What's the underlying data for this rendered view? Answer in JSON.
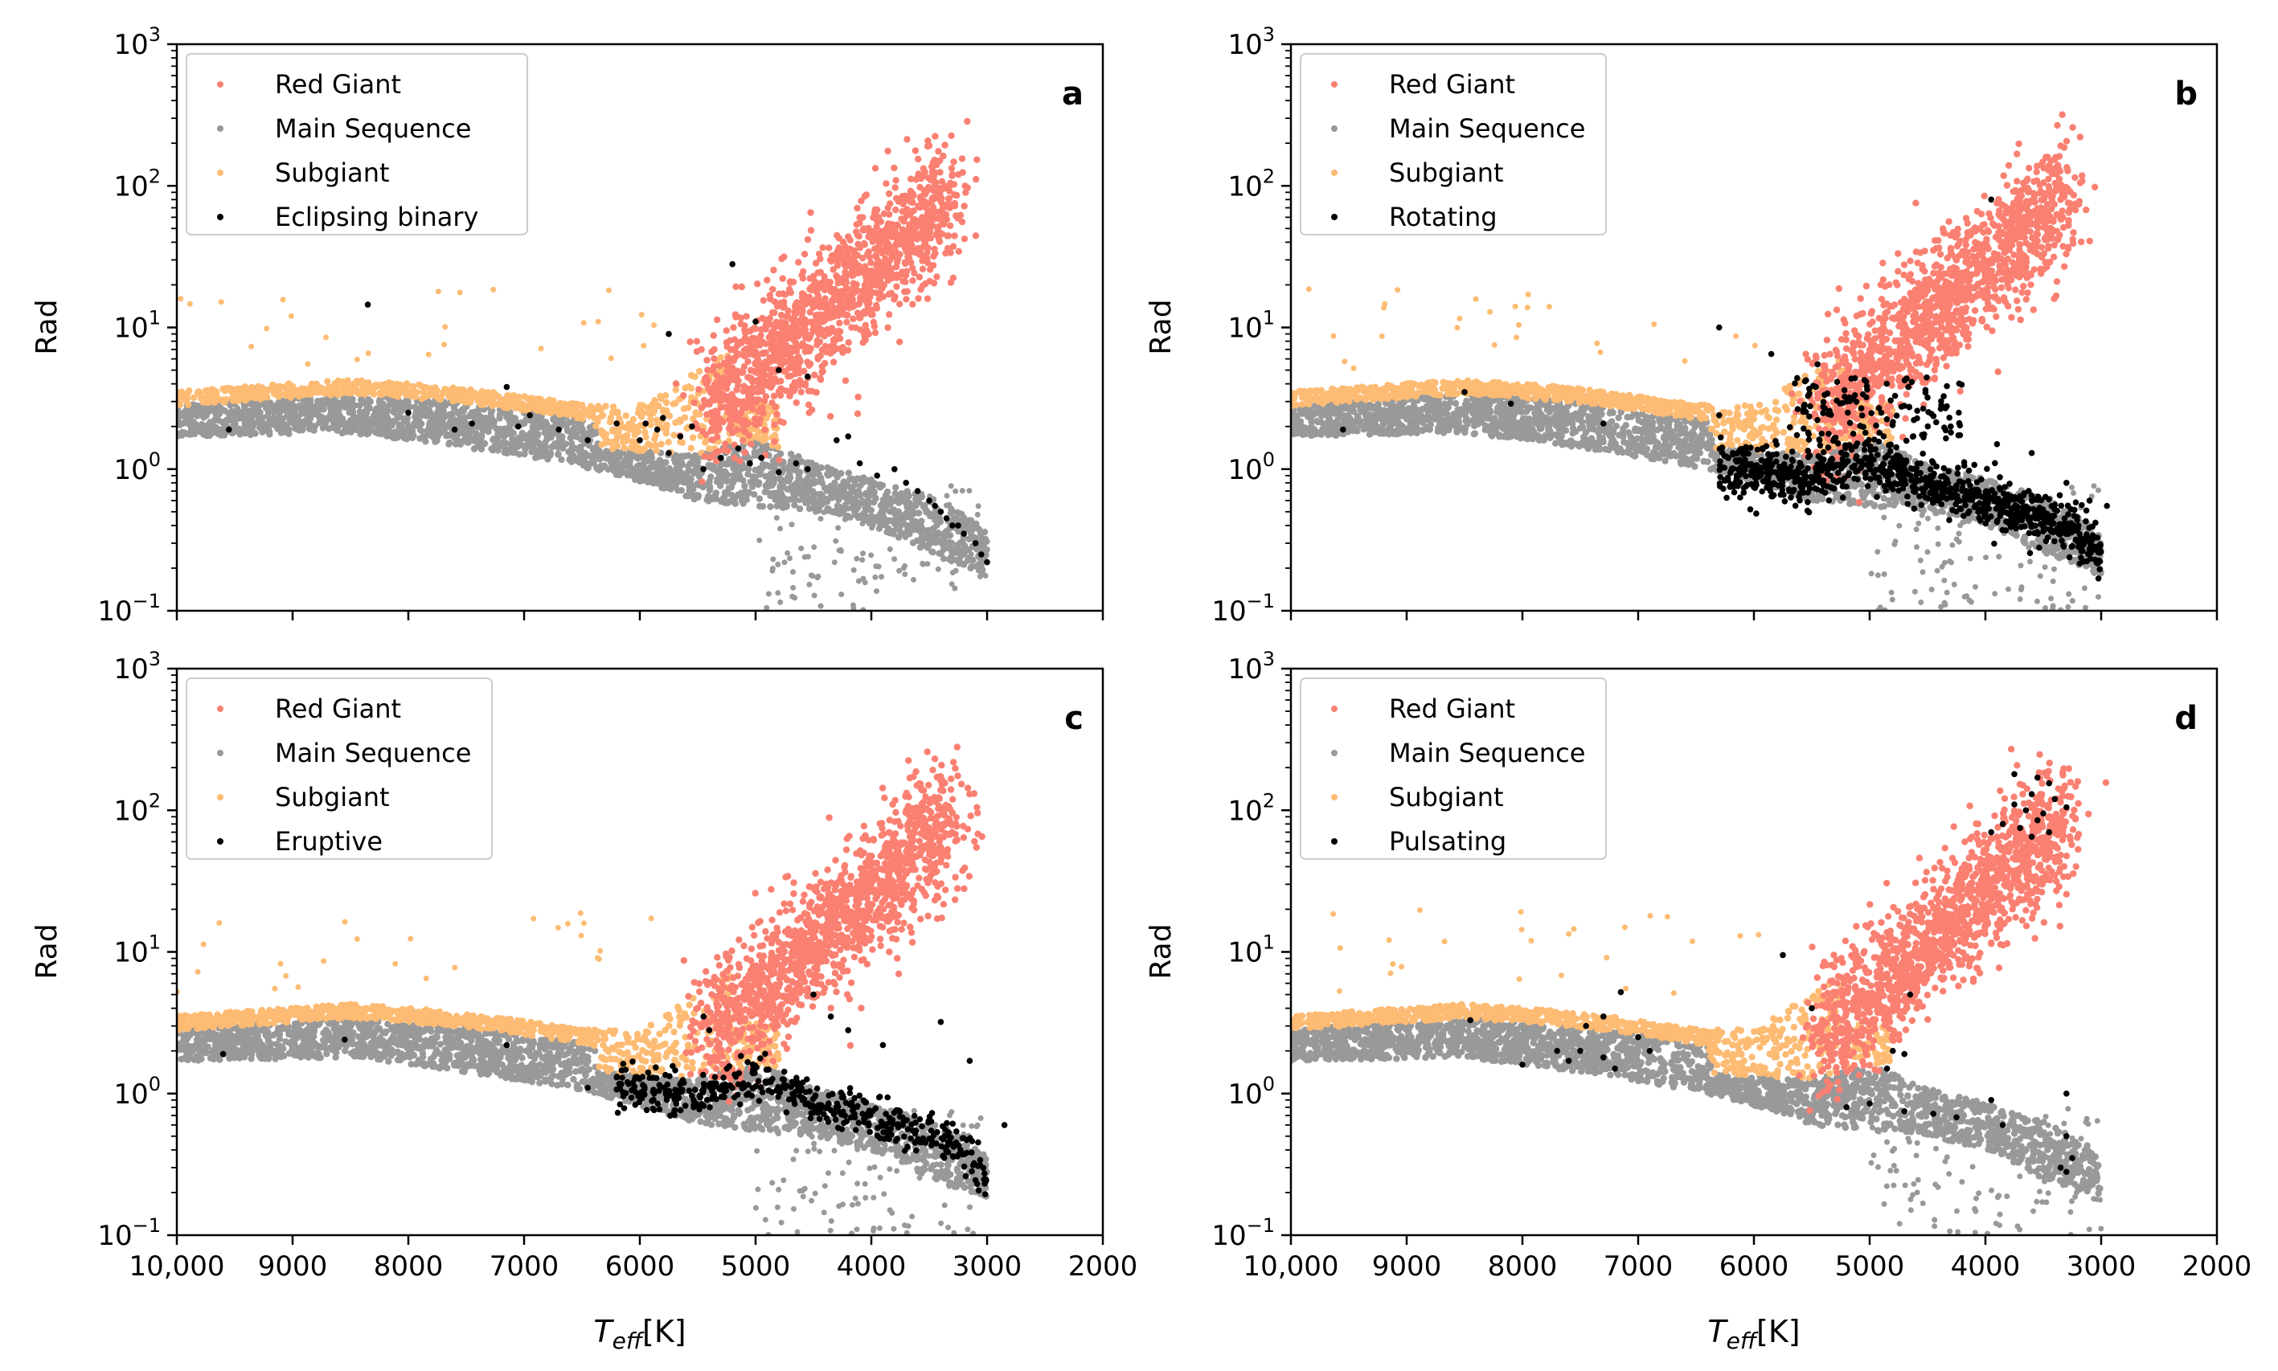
{
  "figure": {
    "x_axis_label": "T",
    "x_axis_label_sub": "eff",
    "x_axis_label_unit": "[K]",
    "y_axis_label": "Rad"
  },
  "colors": {
    "red_giant": "#FA8072",
    "main_sequence": "#999999",
    "subgiant": "#FDBB73",
    "variable": "#000000"
  },
  "chart_data": [
    {
      "panel": "a",
      "type": "scatter",
      "title": "",
      "panel_label": "a",
      "xlabel": "T_eff [K]",
      "ylabel": "Rad",
      "xlim": [
        10000,
        2000
      ],
      "ylim": [
        0.1,
        1000
      ],
      "yscale": "log",
      "x_ticks": [
        "10,000",
        "9000",
        "8000",
        "7000",
        "6000",
        "5000",
        "4000",
        "3000",
        "2000"
      ],
      "y_ticks": [
        {
          "base": "10",
          "exp": "−1"
        },
        {
          "base": "10",
          "exp": "0"
        },
        {
          "base": "10",
          "exp": "1"
        },
        {
          "base": "10",
          "exp": "2"
        },
        {
          "base": "10",
          "exp": "3"
        }
      ],
      "legend_position": "top-left",
      "legend": [
        "Red Giant",
        "Main Sequence",
        "Subgiant",
        "Eclipsing binary"
      ],
      "highlight": "Eclipsing binary",
      "series": [
        {
          "name": "Eclipsing binary",
          "points": [
            [
              8350,
              14.5
            ],
            [
              5750,
              9
            ],
            [
              5200,
              28
            ],
            [
              5000,
              11
            ],
            [
              4800,
              5
            ],
            [
              4550,
              4.5
            ],
            [
              7150,
              3.8
            ],
            [
              9550,
              1.9
            ],
            [
              8000,
              2.5
            ],
            [
              7600,
              1.9
            ],
            [
              7450,
              2.1
            ],
            [
              7050,
              2.0
            ],
            [
              6950,
              2.4
            ],
            [
              6700,
              1.9
            ],
            [
              6450,
              1.6
            ],
            [
              6200,
              2.1
            ],
            [
              6000,
              1.6
            ],
            [
              5950,
              2.1
            ],
            [
              5850,
              1.9
            ],
            [
              5800,
              2.3
            ],
            [
              5750,
              1.3
            ],
            [
              5650,
              1.7
            ],
            [
              5550,
              2.0
            ],
            [
              5450,
              1.0
            ],
            [
              5300,
              1.2
            ],
            [
              5150,
              1.4
            ],
            [
              5050,
              1.1
            ],
            [
              4950,
              1.2
            ],
            [
              4800,
              0.95
            ],
            [
              4650,
              1.1
            ],
            [
              4550,
              1.0
            ],
            [
              4300,
              1.6
            ],
            [
              4200,
              1.7
            ],
            [
              4100,
              1.1
            ],
            [
              3950,
              0.9
            ],
            [
              3800,
              1.0
            ],
            [
              3700,
              0.8
            ],
            [
              3600,
              0.7
            ],
            [
              3500,
              0.6
            ],
            [
              3450,
              0.55
            ],
            [
              3400,
              0.5
            ],
            [
              3350,
              0.45
            ],
            [
              3300,
              0.4
            ],
            [
              3250,
              0.4
            ],
            [
              3200,
              0.35
            ],
            [
              3100,
              0.3
            ],
            [
              3050,
              0.25
            ],
            [
              3000,
              0.22
            ]
          ]
        }
      ]
    },
    {
      "panel": "b",
      "type": "scatter",
      "title": "",
      "panel_label": "b",
      "xlabel": "T_eff [K]",
      "ylabel": "Rad",
      "xlim": [
        10000,
        2000
      ],
      "ylim": [
        0.1,
        1000
      ],
      "yscale": "log",
      "x_ticks": [
        "10,000",
        "9000",
        "8000",
        "7000",
        "6000",
        "5000",
        "4000",
        "3000",
        "2000"
      ],
      "y_ticks": [
        {
          "base": "10",
          "exp": "−1"
        },
        {
          "base": "10",
          "exp": "0"
        },
        {
          "base": "10",
          "exp": "1"
        },
        {
          "base": "10",
          "exp": "2"
        },
        {
          "base": "10",
          "exp": "3"
        }
      ],
      "legend_position": "top-left",
      "legend": [
        "Red Giant",
        "Main Sequence",
        "Subgiant",
        "Rotating"
      ],
      "highlight": "Rotating",
      "series": [
        {
          "name": "Rotating",
          "points": [
            [
              3950,
              80
            ],
            [
              6300,
              10
            ],
            [
              5850,
              6.5
            ],
            [
              5450,
              5.5
            ],
            [
              8500,
              3.5
            ],
            [
              9550,
              1.9
            ],
            [
              8100,
              2.9
            ],
            [
              7300,
              2.1
            ],
            [
              6300,
              2.4
            ],
            [
              5200,
              3.0
            ],
            [
              4900,
              2.5
            ],
            [
              4700,
              2.8
            ],
            [
              4500,
              3.2
            ],
            [
              4300,
              2.0
            ],
            [
              3900,
              1.5
            ],
            [
              3600,
              1.3
            ],
            [
              3300,
              0.8
            ],
            [
              3100,
              0.6
            ],
            [
              2950,
              0.55
            ]
          ]
        }
      ]
    },
    {
      "panel": "c",
      "type": "scatter",
      "title": "",
      "panel_label": "c",
      "xlabel": "T_eff [K]",
      "ylabel": "Rad",
      "xlim": [
        10000,
        2000
      ],
      "ylim": [
        0.1,
        1000
      ],
      "yscale": "log",
      "x_ticks": [
        "10,000",
        "9000",
        "8000",
        "7000",
        "6000",
        "5000",
        "4000",
        "3000",
        "2000"
      ],
      "y_ticks": [
        {
          "base": "10",
          "exp": "−1"
        },
        {
          "base": "10",
          "exp": "0"
        },
        {
          "base": "10",
          "exp": "1"
        },
        {
          "base": "10",
          "exp": "2"
        },
        {
          "base": "10",
          "exp": "3"
        }
      ],
      "legend_position": "top-left",
      "legend": [
        "Red Giant",
        "Main Sequence",
        "Subgiant",
        "Eruptive"
      ],
      "highlight": "Eruptive",
      "series": [
        {
          "name": "Eruptive",
          "points": [
            [
              9600,
              1.9
            ],
            [
              8550,
              2.4
            ],
            [
              7150,
              2.2
            ],
            [
              5450,
              3.5
            ],
            [
              5400,
              2.8
            ],
            [
              4500,
              5.0
            ],
            [
              4350,
              3.5
            ],
            [
              4200,
              2.8
            ],
            [
              3900,
              2.2
            ],
            [
              3400,
              3.2
            ],
            [
              3150,
              1.7
            ],
            [
              2850,
              0.6
            ],
            [
              6450,
              1.1
            ],
            [
              6200,
              1.3
            ]
          ]
        }
      ]
    },
    {
      "panel": "d",
      "type": "scatter",
      "title": "",
      "panel_label": "d",
      "xlabel": "T_eff [K]",
      "ylabel": "Rad",
      "xlim": [
        10000,
        2000
      ],
      "ylim": [
        0.1,
        1000
      ],
      "yscale": "log",
      "x_ticks": [
        "10,000",
        "9000",
        "8000",
        "7000",
        "6000",
        "5000",
        "4000",
        "3000",
        "2000"
      ],
      "y_ticks": [
        {
          "base": "10",
          "exp": "−1"
        },
        {
          "base": "10",
          "exp": "0"
        },
        {
          "base": "10",
          "exp": "1"
        },
        {
          "base": "10",
          "exp": "2"
        },
        {
          "base": "10",
          "exp": "3"
        }
      ],
      "legend_position": "top-left",
      "legend": [
        "Red Giant",
        "Main Sequence",
        "Subgiant",
        "Pulsating"
      ],
      "highlight": "Pulsating",
      "series": [
        {
          "name": "Pulsating",
          "points": [
            [
              3750,
              180
            ],
            [
              3550,
              170
            ],
            [
              3450,
              155
            ],
            [
              3600,
              130
            ],
            [
              3400,
              120
            ],
            [
              3750,
              110
            ],
            [
              3650,
              100
            ],
            [
              3500,
              95
            ],
            [
              3300,
              105
            ],
            [
              3550,
              85
            ],
            [
              3850,
              80
            ],
            [
              3700,
              75
            ],
            [
              3450,
              70
            ],
            [
              3950,
              70
            ],
            [
              3600,
              65
            ],
            [
              5750,
              9.5
            ],
            [
              5500,
              4.0
            ],
            [
              4650,
              5.0
            ],
            [
              7150,
              5.2
            ],
            [
              7300,
              3.5
            ],
            [
              7450,
              3.0
            ],
            [
              7000,
              2.5
            ],
            [
              6900,
              2.0
            ],
            [
              7500,
              2.0
            ],
            [
              7700,
              2.0
            ],
            [
              8450,
              3.3
            ],
            [
              8000,
              1.6
            ],
            [
              7600,
              1.7
            ],
            [
              7200,
              1.5
            ],
            [
              7300,
              1.8
            ],
            [
              4850,
              1.5
            ],
            [
              4700,
              1.9
            ],
            [
              4800,
              2.0
            ],
            [
              3950,
              0.9
            ],
            [
              3300,
              1.0
            ],
            [
              5200,
              0.8
            ],
            [
              5000,
              0.85
            ],
            [
              4700,
              0.75
            ],
            [
              4450,
              0.72
            ],
            [
              4250,
              0.68
            ],
            [
              3850,
              0.6
            ],
            [
              3300,
              0.5
            ],
            [
              3250,
              0.35
            ],
            [
              3350,
              0.3
            ],
            [
              3300,
              0.28
            ]
          ]
        }
      ]
    }
  ]
}
